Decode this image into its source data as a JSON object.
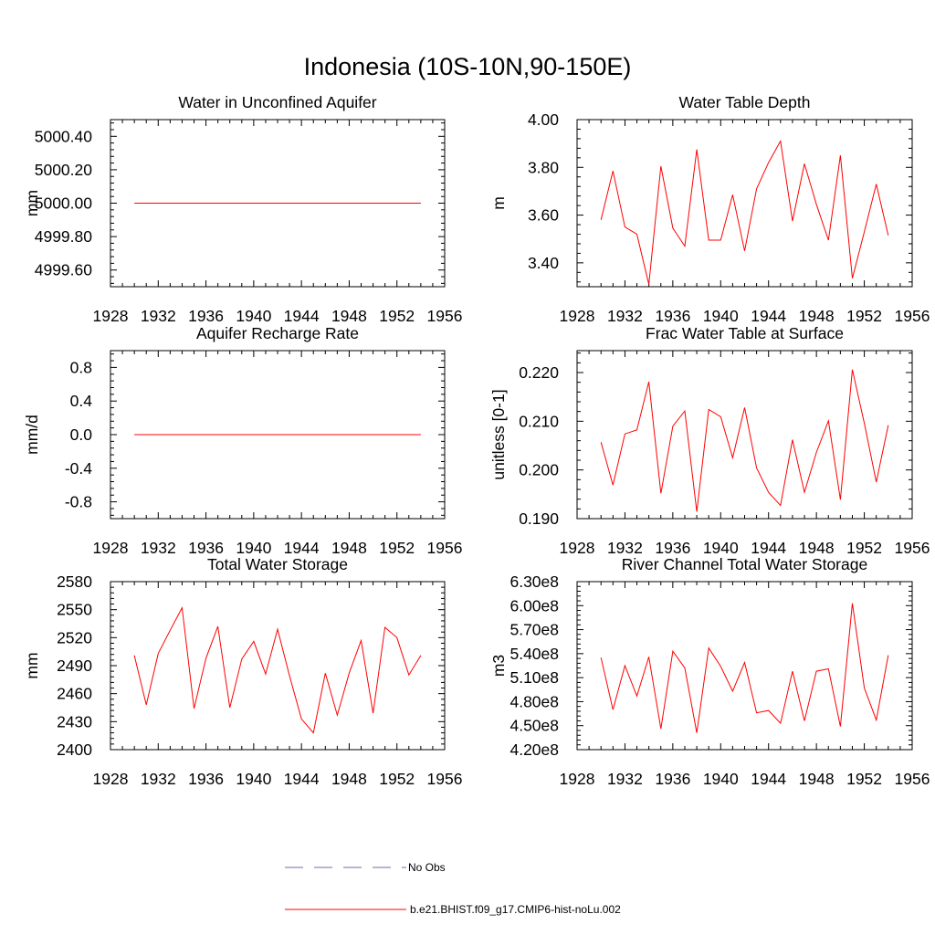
{
  "figure": {
    "title": "Indonesia (10S-10N,90-150E)",
    "line_color": "#ff0000",
    "obs_color": "#6b6bb0",
    "legend": [
      {
        "label": "No Obs",
        "style": "dashed",
        "color": "#6b6bb0"
      },
      {
        "label": "b.e21.BHIST.f09_g17.CMIP6-hist-noLu.002",
        "style": "solid",
        "color": "#ff0000"
      }
    ]
  },
  "chart_data": [
    {
      "type": "line",
      "title": "Water in Unconfined Aquifer",
      "ylabel": "mm",
      "xlim": [
        1928,
        1956
      ],
      "xticks": [
        1928,
        1932,
        1936,
        1940,
        1944,
        1948,
        1952,
        1956
      ],
      "ylim": [
        4999.5,
        5000.5
      ],
      "yticks": [
        4999.6,
        4999.8,
        5000.0,
        5000.2,
        5000.4
      ],
      "ytick_labels": [
        "4999.60",
        "4999.80",
        "5000.00",
        "5000.20",
        "5000.40"
      ],
      "x": [
        1930,
        1931,
        1932,
        1933,
        1934,
        1935,
        1936,
        1937,
        1938,
        1939,
        1940,
        1941,
        1942,
        1943,
        1944,
        1945,
        1946,
        1947,
        1948,
        1949,
        1950,
        1951,
        1952,
        1953,
        1954
      ],
      "values": [
        5000,
        5000,
        5000,
        5000,
        5000,
        5000,
        5000,
        5000,
        5000,
        5000,
        5000,
        5000,
        5000,
        5000,
        5000,
        5000,
        5000,
        5000,
        5000,
        5000,
        5000,
        5000,
        5000,
        5000,
        5000
      ]
    },
    {
      "type": "line",
      "title": "Water Table Depth",
      "ylabel": "m",
      "xlim": [
        1928,
        1956
      ],
      "xticks": [
        1928,
        1932,
        1936,
        1940,
        1944,
        1948,
        1952,
        1956
      ],
      "ylim": [
        3.3,
        4.0
      ],
      "yticks": [
        3.4,
        3.6,
        3.8,
        4.0
      ],
      "ytick_labels": [
        "3.40",
        "3.60",
        "3.80",
        "4.00"
      ],
      "x": [
        1930,
        1931,
        1932,
        1933,
        1934,
        1935,
        1936,
        1937,
        1938,
        1939,
        1940,
        1941,
        1942,
        1943,
        1944,
        1945,
        1946,
        1947,
        1948,
        1949,
        1950,
        1951,
        1952,
        1953,
        1954
      ],
      "values": [
        3.58,
        3.785,
        3.55,
        3.52,
        3.31,
        3.805,
        3.545,
        3.47,
        3.875,
        3.495,
        3.495,
        3.685,
        3.45,
        3.71,
        3.82,
        3.91,
        3.575,
        3.815,
        3.645,
        3.495,
        3.85,
        3.335,
        3.53,
        3.73,
        3.515
      ]
    },
    {
      "type": "line",
      "title": "Aquifer Recharge Rate",
      "ylabel": "mm/d",
      "xlim": [
        1928,
        1956
      ],
      "xticks": [
        1928,
        1932,
        1936,
        1940,
        1944,
        1948,
        1952,
        1956
      ],
      "ylim": [
        -1.0,
        1.0
      ],
      "yticks": [
        -0.8,
        -0.4,
        0.0,
        0.4,
        0.8
      ],
      "ytick_labels": [
        "-0.8",
        "-0.4",
        "0.0",
        "0.4",
        "0.8"
      ],
      "x": [
        1930,
        1931,
        1932,
        1933,
        1934,
        1935,
        1936,
        1937,
        1938,
        1939,
        1940,
        1941,
        1942,
        1943,
        1944,
        1945,
        1946,
        1947,
        1948,
        1949,
        1950,
        1951,
        1952,
        1953,
        1954
      ],
      "values": [
        0,
        0,
        0,
        0,
        0,
        0,
        0,
        0,
        0,
        0,
        0,
        0,
        0,
        0,
        0,
        0,
        0,
        0,
        0,
        0,
        0,
        0,
        0,
        0,
        0
      ]
    },
    {
      "type": "line",
      "title": "Frac Water Table at Surface",
      "ylabel": "unitless [0-1]",
      "xlim": [
        1928,
        1956
      ],
      "xticks": [
        1928,
        1932,
        1936,
        1940,
        1944,
        1948,
        1952,
        1956
      ],
      "ylim": [
        0.19,
        0.2245
      ],
      "yticks": [
        0.19,
        0.2,
        0.21,
        0.22
      ],
      "ytick_labels": [
        "0.190",
        "0.200",
        "0.210",
        "0.220"
      ],
      "x": [
        1930,
        1931,
        1932,
        1933,
        1934,
        1935,
        1936,
        1937,
        1938,
        1939,
        1940,
        1941,
        1942,
        1943,
        1944,
        1945,
        1946,
        1947,
        1948,
        1949,
        1950,
        1951,
        1952,
        1953,
        1954
      ],
      "values": [
        0.2057,
        0.1969,
        0.2074,
        0.2082,
        0.2181,
        0.1952,
        0.209,
        0.2121,
        0.1914,
        0.2124,
        0.2109,
        0.2025,
        0.2128,
        0.2004,
        0.1954,
        0.1927,
        0.2062,
        0.1954,
        0.2036,
        0.2101,
        0.1939,
        0.2206,
        0.2096,
        0.1975,
        0.2092
      ]
    },
    {
      "type": "line",
      "title": "Total Water Storage",
      "ylabel": "mm",
      "xlim": [
        1928,
        1956
      ],
      "xticks": [
        1928,
        1932,
        1936,
        1940,
        1944,
        1948,
        1952,
        1956
      ],
      "ylim": [
        2400,
        2580
      ],
      "yticks": [
        2400,
        2430,
        2460,
        2490,
        2520,
        2550,
        2580
      ],
      "ytick_labels": [
        "2400",
        "2430",
        "2460",
        "2490",
        "2520",
        "2550",
        "2580"
      ],
      "x": [
        1930,
        1931,
        1932,
        1933,
        1934,
        1935,
        1936,
        1937,
        1938,
        1939,
        1940,
        1941,
        1942,
        1943,
        1944,
        1945,
        1946,
        1947,
        1948,
        1949,
        1950,
        1951,
        1952,
        1953,
        1954
      ],
      "values": [
        2501,
        2448,
        2503,
        2528,
        2552,
        2444,
        2498,
        2532,
        2445,
        2497,
        2516,
        2481,
        2529,
        2479,
        2433,
        2418,
        2482,
        2437,
        2482,
        2517,
        2439,
        2531,
        2520,
        2480,
        2501
      ]
    },
    {
      "type": "line",
      "title": "River Channel Total Water Storage",
      "ylabel": "m3",
      "xlim": [
        1928,
        1956
      ],
      "xticks": [
        1928,
        1932,
        1936,
        1940,
        1944,
        1948,
        1952,
        1956
      ],
      "ylim": [
        420000000,
        630000000
      ],
      "yticks": [
        420000000,
        450000000,
        480000000,
        510000000,
        540000000,
        570000000,
        600000000,
        630000000
      ],
      "ytick_labels": [
        "4.20e8",
        "4.50e8",
        "4.80e8",
        "5.10e8",
        "5.40e8",
        "5.70e8",
        "6.00e8",
        "6.30e8"
      ],
      "x": [
        1930,
        1931,
        1932,
        1933,
        1934,
        1935,
        1936,
        1937,
        1938,
        1939,
        1940,
        1941,
        1942,
        1943,
        1944,
        1945,
        1946,
        1947,
        1948,
        1949,
        1950,
        1951,
        1952,
        1953,
        1954
      ],
      "values": [
        535000000,
        470000000,
        525000000,
        487000000,
        536000000,
        446000000,
        543000000,
        522000000,
        441000000,
        547000000,
        524000000,
        493000000,
        529000000,
        466000000,
        469000000,
        453000000,
        518000000,
        456000000,
        518000000,
        521000000,
        449000000,
        603000000,
        497000000,
        457000000,
        538000000
      ]
    }
  ]
}
